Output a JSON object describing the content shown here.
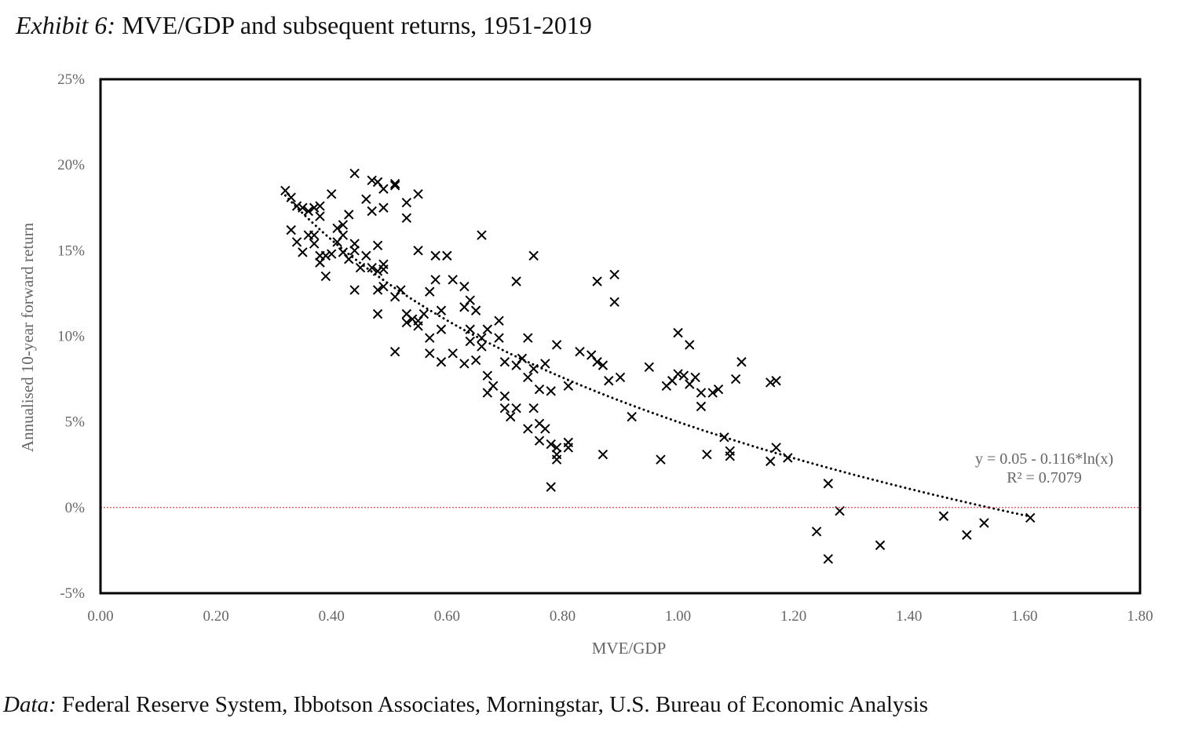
{
  "title": {
    "prefix": "Exhibit 6:",
    "text": " MVE/GDP and subsequent returns, 1951-2019"
  },
  "source": {
    "prefix": "Data:",
    "text": " Federal Reserve System, Ibbotson Associates, Morningstar, U.S. Bureau of Economic Analysis"
  },
  "chart_data": {
    "type": "scatter",
    "xlabel": "MVE/GDP",
    "ylabel": "Annualised 10-year forward return",
    "xlim": [
      0,
      1.8
    ],
    "ylim": [
      -5,
      25
    ],
    "x_ticks": [
      "0.00",
      "0.20",
      "0.40",
      "0.60",
      "0.80",
      "1.00",
      "1.20",
      "1.40",
      "1.60",
      "1.80"
    ],
    "y_ticks": [
      "25%",
      "20%",
      "15%",
      "10%",
      "5%",
      "0%",
      "-5%"
    ],
    "grid": false,
    "marker": "x",
    "reference_line": {
      "y": 0,
      "color": "#e03030",
      "style": "dotted"
    },
    "trendline": {
      "type": "log",
      "a": 0.05,
      "b": -0.116,
      "style": "dotted",
      "equation": "y = 0.05 - 0.116*ln(x)",
      "r2": "R² = 0.7079"
    },
    "points": [
      [
        0.32,
        18.5
      ],
      [
        0.33,
        18.1
      ],
      [
        0.34,
        17.6
      ],
      [
        0.35,
        17.5
      ],
      [
        0.36,
        17.3
      ],
      [
        0.37,
        17.5
      ],
      [
        0.38,
        17.6
      ],
      [
        0.38,
        17.0
      ],
      [
        0.4,
        18.3
      ],
      [
        0.41,
        16.3
      ],
      [
        0.42,
        16.5
      ],
      [
        0.43,
        17.1
      ],
      [
        0.44,
        19.5
      ],
      [
        0.46,
        18.0
      ],
      [
        0.47,
        17.3
      ],
      [
        0.47,
        19.1
      ],
      [
        0.48,
        19.0
      ],
      [
        0.49,
        18.6
      ],
      [
        0.49,
        17.5
      ],
      [
        0.51,
        18.8
      ],
      [
        0.51,
        18.9
      ],
      [
        0.53,
        17.8
      ],
      [
        0.53,
        16.9
      ],
      [
        0.55,
        18.3
      ],
      [
        0.33,
        16.2
      ],
      [
        0.34,
        15.5
      ],
      [
        0.35,
        14.9
      ],
      [
        0.36,
        15.9
      ],
      [
        0.37,
        15.4
      ],
      [
        0.37,
        15.9
      ],
      [
        0.38,
        14.7
      ],
      [
        0.38,
        14.3
      ],
      [
        0.39,
        13.5
      ],
      [
        0.39,
        14.7
      ],
      [
        0.4,
        14.8
      ],
      [
        0.41,
        15.5
      ],
      [
        0.42,
        15.9
      ],
      [
        0.42,
        14.9
      ],
      [
        0.43,
        14.5
      ],
      [
        0.44,
        12.7
      ],
      [
        0.44,
        15.4
      ],
      [
        0.44,
        15.0
      ],
      [
        0.45,
        14.0
      ],
      [
        0.46,
        14.7
      ],
      [
        0.47,
        14.0
      ],
      [
        0.48,
        11.3
      ],
      [
        0.48,
        15.3
      ],
      [
        0.48,
        13.8
      ],
      [
        0.49,
        14.2
      ],
      [
        0.49,
        13.9
      ],
      [
        0.48,
        12.7
      ],
      [
        0.49,
        12.9
      ],
      [
        0.51,
        9.1
      ],
      [
        0.51,
        12.3
      ],
      [
        0.52,
        12.7
      ],
      [
        0.53,
        10.8
      ],
      [
        0.53,
        11.3
      ],
      [
        0.54,
        11.0
      ],
      [
        0.55,
        10.6
      ],
      [
        0.55,
        15.0
      ],
      [
        0.55,
        10.9
      ],
      [
        0.56,
        11.3
      ],
      [
        0.57,
        9.9
      ],
      [
        0.57,
        9.0
      ],
      [
        0.57,
        12.6
      ],
      [
        0.58,
        13.3
      ],
      [
        0.58,
        14.7
      ],
      [
        0.59,
        10.4
      ],
      [
        0.59,
        8.5
      ],
      [
        0.59,
        11.5
      ],
      [
        0.6,
        14.7
      ],
      [
        0.61,
        9.0
      ],
      [
        0.61,
        13.3
      ],
      [
        0.63,
        11.7
      ],
      [
        0.63,
        8.4
      ],
      [
        0.63,
        12.9
      ],
      [
        0.64,
        12.1
      ],
      [
        0.64,
        10.4
      ],
      [
        0.64,
        9.7
      ],
      [
        0.65,
        11.5
      ],
      [
        0.65,
        8.6
      ],
      [
        0.66,
        15.9
      ],
      [
        0.66,
        9.4
      ],
      [
        0.66,
        9.9
      ],
      [
        0.67,
        6.7
      ],
      [
        0.67,
        10.4
      ],
      [
        0.67,
        7.7
      ],
      [
        0.68,
        7.1
      ],
      [
        0.69,
        10.9
      ],
      [
        0.69,
        9.9
      ],
      [
        0.7,
        5.8
      ],
      [
        0.7,
        8.5
      ],
      [
        0.7,
        6.5
      ],
      [
        0.71,
        5.3
      ],
      [
        0.72,
        5.8
      ],
      [
        0.72,
        13.2
      ],
      [
        0.72,
        8.3
      ],
      [
        0.73,
        8.7
      ],
      [
        0.74,
        9.9
      ],
      [
        0.74,
        4.6
      ],
      [
        0.74,
        7.6
      ],
      [
        0.75,
        8.1
      ],
      [
        0.75,
        5.8
      ],
      [
        0.75,
        14.7
      ],
      [
        0.76,
        6.9
      ],
      [
        0.76,
        3.9
      ],
      [
        0.76,
        4.9
      ],
      [
        0.77,
        4.6
      ],
      [
        0.77,
        8.4
      ],
      [
        0.78,
        6.8
      ],
      [
        0.78,
        3.7
      ],
      [
        0.78,
        1.2
      ],
      [
        0.79,
        9.5
      ],
      [
        0.79,
        3.1
      ],
      [
        0.79,
        2.8
      ],
      [
        0.79,
        3.5
      ],
      [
        0.81,
        7.1
      ],
      [
        0.81,
        3.8
      ],
      [
        0.81,
        3.5
      ],
      [
        0.83,
        9.1
      ],
      [
        0.85,
        8.9
      ],
      [
        0.86,
        8.5
      ],
      [
        0.87,
        8.3
      ],
      [
        0.87,
        3.1
      ],
      [
        0.88,
        7.4
      ],
      [
        0.86,
        13.2
      ],
      [
        0.89,
        12.0
      ],
      [
        0.89,
        13.6
      ],
      [
        0.9,
        7.6
      ],
      [
        0.92,
        5.3
      ],
      [
        0.95,
        8.2
      ],
      [
        0.97,
        2.8
      ],
      [
        0.98,
        7.1
      ],
      [
        0.99,
        7.4
      ],
      [
        1.0,
        10.2
      ],
      [
        1.0,
        7.8
      ],
      [
        1.01,
        7.7
      ],
      [
        1.02,
        9.5
      ],
      [
        1.02,
        7.2
      ],
      [
        1.03,
        7.6
      ],
      [
        1.04,
        6.7
      ],
      [
        1.04,
        5.9
      ],
      [
        1.05,
        3.1
      ],
      [
        1.06,
        6.7
      ],
      [
        1.07,
        6.9
      ],
      [
        1.08,
        4.1
      ],
      [
        1.09,
        3.3
      ],
      [
        1.09,
        3.0
      ],
      [
        1.1,
        7.5
      ],
      [
        1.11,
        8.5
      ],
      [
        1.16,
        7.3
      ],
      [
        1.17,
        7.4
      ],
      [
        1.16,
        2.7
      ],
      [
        1.17,
        3.5
      ],
      [
        1.19,
        2.9
      ],
      [
        1.24,
        -1.4
      ],
      [
        1.26,
        1.4
      ],
      [
        1.26,
        -3.0
      ],
      [
        1.28,
        -0.2
      ],
      [
        1.35,
        -2.2
      ],
      [
        1.46,
        -0.5
      ],
      [
        1.5,
        -1.6
      ],
      [
        1.53,
        -0.9
      ],
      [
        1.61,
        -0.6
      ]
    ]
  }
}
